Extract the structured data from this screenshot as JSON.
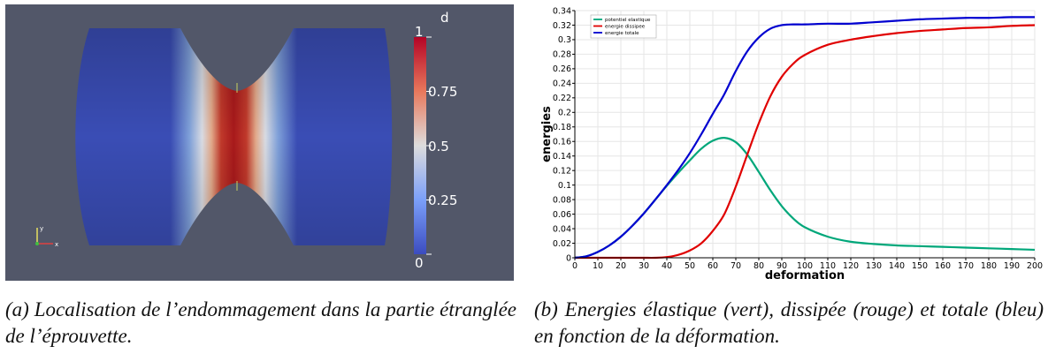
{
  "figure_a": {
    "colorbar": {
      "title": "d",
      "ticks": [
        "1",
        "0.75",
        "0.5",
        "0.25",
        "0"
      ]
    },
    "axes_triad": {
      "y_label": "y",
      "x_label": "x"
    },
    "colors": {
      "background": "#525769",
      "low": "#3b4cc0",
      "mid": "#dddddd",
      "high": "#b40426"
    }
  },
  "figure_b": {
    "chart_data": {
      "type": "line",
      "xlabel": "deformation",
      "ylabel": "energies",
      "xlim": [
        0,
        200
      ],
      "ylim": [
        0,
        0.34
      ],
      "x_ticks": [
        "0",
        "10",
        "20",
        "30",
        "40",
        "50",
        "60",
        "70",
        "80",
        "90",
        "100",
        "110",
        "120",
        "130",
        "140",
        "150",
        "160",
        "170",
        "180",
        "190",
        "200"
      ],
      "y_ticks": [
        "0",
        "0.02",
        "0.04",
        "0.06",
        "0.08",
        "0.1",
        "0.12",
        "0.14",
        "0.16",
        "0.18",
        "0.2",
        "0.22",
        "0.24",
        "0.26",
        "0.28",
        "0.3",
        "0.32",
        "0.34"
      ],
      "legend_position": "top-left",
      "grid": true,
      "x": [
        0,
        5,
        10,
        15,
        20,
        25,
        30,
        35,
        40,
        45,
        50,
        55,
        60,
        65,
        70,
        75,
        80,
        85,
        90,
        95,
        100,
        110,
        120,
        130,
        140,
        150,
        160,
        170,
        180,
        190,
        200
      ],
      "series": [
        {
          "name": "potentiel elastique",
          "color": "#00a77a",
          "values": [
            0,
            0.002,
            0.008,
            0.017,
            0.029,
            0.044,
            0.061,
            0.08,
            0.099,
            0.117,
            0.134,
            0.15,
            0.161,
            0.165,
            0.159,
            0.142,
            0.118,
            0.093,
            0.071,
            0.054,
            0.042,
            0.029,
            0.022,
            0.019,
            0.017,
            0.016,
            0.015,
            0.014,
            0.013,
            0.012,
            0.011
          ]
        },
        {
          "name": "energie dissipee",
          "color": "#e00000",
          "values": [
            0,
            0,
            0,
            0,
            0,
            0,
            0,
            0,
            0.001,
            0.004,
            0.01,
            0.02,
            0.037,
            0.06,
            0.098,
            0.142,
            0.185,
            0.222,
            0.249,
            0.267,
            0.279,
            0.293,
            0.3,
            0.305,
            0.309,
            0.312,
            0.314,
            0.316,
            0.317,
            0.319,
            0.32
          ]
        },
        {
          "name": "energie totale",
          "color": "#0000d0",
          "values": [
            0,
            0.002,
            0.008,
            0.017,
            0.029,
            0.044,
            0.061,
            0.08,
            0.1,
            0.121,
            0.144,
            0.17,
            0.198,
            0.225,
            0.257,
            0.284,
            0.303,
            0.315,
            0.32,
            0.321,
            0.321,
            0.322,
            0.322,
            0.324,
            0.326,
            0.328,
            0.329,
            0.33,
            0.33,
            0.331,
            0.331
          ]
        }
      ]
    }
  },
  "captions": {
    "a": "(a) Localisation de l’endommagement dans la partie étranglée de l’éprouvette.",
    "b": "(b) Energies élastique (vert), dissipée (rouge) et totale (bleu) en fonction de la déformation."
  }
}
